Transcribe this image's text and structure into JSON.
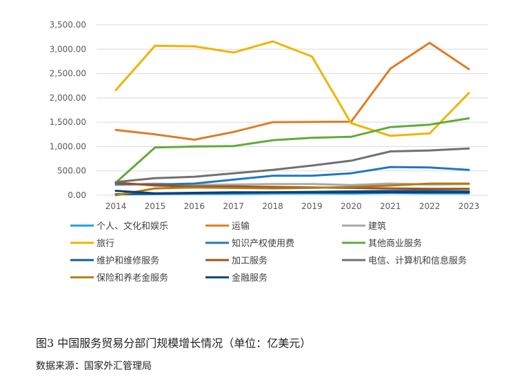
{
  "figure": {
    "caption": "图3 中国服务贸易分部门规模增长情况（单位：亿美元）",
    "source": "数据来源：国家外汇管理局"
  },
  "chart_data": {
    "type": "line",
    "x": [
      "2014",
      "2015",
      "2016",
      "2017",
      "2018",
      "2019",
      "2020",
      "2021",
      "2022",
      "2023"
    ],
    "ylim": [
      0,
      3500
    ],
    "yticks": [
      "0.00",
      "500.00",
      "1,000.00",
      "1,500.00",
      "2,000.00",
      "2,500.00",
      "3,000.00",
      "3,500.00"
    ],
    "grid": true,
    "legend_position": "bottom",
    "series": [
      {
        "name": "个人、文化和娱乐",
        "color": "#1fa3dc",
        "values": [
          20,
          25,
          30,
          30,
          35,
          40,
          35,
          45,
          40,
          40
        ]
      },
      {
        "name": "运输",
        "color": "#e07b22",
        "values": [
          1340,
          1250,
          1140,
          1300,
          1500,
          1505,
          1510,
          2600,
          3130,
          2590
        ]
      },
      {
        "name": "建筑",
        "color": "#a8a8a8",
        "values": [
          210,
          240,
          210,
          220,
          230,
          230,
          210,
          240,
          220,
          230
        ]
      },
      {
        "name": "旅行",
        "color": "#f0b400",
        "values": [
          2160,
          3070,
          3060,
          2930,
          3160,
          2850,
          1480,
          1220,
          1270,
          2100
        ]
      },
      {
        "name": "知识产权使用费",
        "color": "#1f77c4",
        "values": [
          230,
          220,
          240,
          320,
          400,
          400,
          450,
          580,
          570,
          520
        ]
      },
      {
        "name": "其他商业服务",
        "color": "#5faa3a",
        "values": [
          260,
          980,
          1000,
          1010,
          1130,
          1180,
          1200,
          1400,
          1450,
          1580
        ]
      },
      {
        "name": "维护和维修服务",
        "color": "#125c9e",
        "values": [
          20,
          30,
          40,
          50,
          60,
          70,
          80,
          90,
          90,
          80
        ]
      },
      {
        "name": "加工服务",
        "color": "#a84d10",
        "values": [
          260,
          200,
          180,
          180,
          170,
          160,
          150,
          140,
          130,
          130
        ]
      },
      {
        "name": "电信、计算机和信息服务",
        "color": "#707070",
        "values": [
          270,
          350,
          380,
          450,
          520,
          610,
          710,
          900,
          920,
          960
        ]
      },
      {
        "name": "保险和养老金服务",
        "color": "#b07d10",
        "values": [
          0,
          140,
          160,
          150,
          140,
          150,
          170,
          200,
          240,
          240
        ]
      },
      {
        "name": "金融服务",
        "color": "#0b3f78",
        "values": [
          90,
          40,
          50,
          60,
          60,
          60,
          60,
          60,
          60,
          60
        ]
      }
    ]
  }
}
